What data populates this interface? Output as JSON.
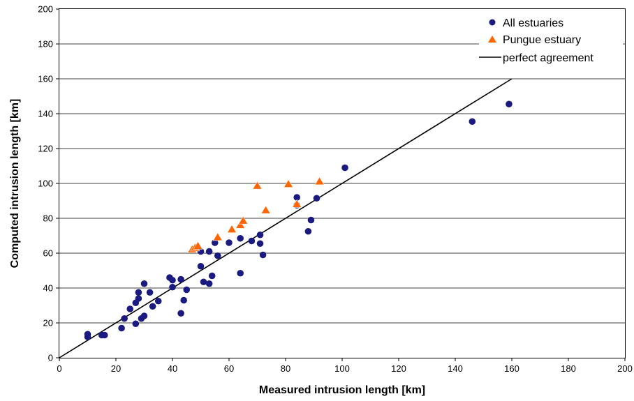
{
  "chart_data": {
    "type": "scatter",
    "title": "",
    "xlabel": "Measured intrusion length [km]",
    "ylabel": "Computed intrusion length [km]",
    "xlim": [
      0,
      200
    ],
    "ylim": [
      0,
      200
    ],
    "xticks": [
      0,
      20,
      40,
      60,
      80,
      100,
      120,
      140,
      160,
      180,
      200
    ],
    "yticks": [
      0,
      20,
      40,
      60,
      80,
      100,
      120,
      140,
      160,
      180,
      200
    ],
    "grid": "horizontal",
    "legend_position": "top-right",
    "series": [
      {
        "name": "All estuaries",
        "marker": "circle",
        "color": "#1a1a80",
        "points": [
          [
            10,
            13.5
          ],
          [
            10,
            12
          ],
          [
            15,
            13
          ],
          [
            16,
            13
          ],
          [
            22,
            17
          ],
          [
            23,
            22.5
          ],
          [
            25,
            28
          ],
          [
            27,
            31.5
          ],
          [
            27,
            19.5
          ],
          [
            28,
            37.5
          ],
          [
            28,
            34
          ],
          [
            29,
            22.5
          ],
          [
            30,
            24
          ],
          [
            30,
            42.5
          ],
          [
            32,
            37.5
          ],
          [
            33,
            29.5
          ],
          [
            35,
            32.5
          ],
          [
            39,
            46
          ],
          [
            40,
            44.5
          ],
          [
            40,
            40.5
          ],
          [
            43,
            45
          ],
          [
            43,
            25.5
          ],
          [
            44,
            33
          ],
          [
            45,
            39
          ],
          [
            49,
            63
          ],
          [
            50,
            61
          ],
          [
            50,
            52.5
          ],
          [
            51,
            43.5
          ],
          [
            53,
            61
          ],
          [
            53,
            42.5
          ],
          [
            54,
            47
          ],
          [
            55,
            66
          ],
          [
            56,
            58.5
          ],
          [
            60,
            66
          ],
          [
            64,
            68.5
          ],
          [
            64,
            48.5
          ],
          [
            68,
            67
          ],
          [
            71,
            70.5
          ],
          [
            71,
            65.5
          ],
          [
            72,
            59
          ],
          [
            84,
            92
          ],
          [
            84,
            87.5
          ],
          [
            88,
            72.5
          ],
          [
            89,
            79
          ],
          [
            91,
            91.5
          ],
          [
            101,
            109
          ],
          [
            146,
            135.5
          ],
          [
            159,
            145.5
          ]
        ]
      },
      {
        "name": "Pungue estuary",
        "marker": "triangle",
        "color": "#ff6600",
        "points": [
          [
            47,
            62
          ],
          [
            48,
            63
          ],
          [
            49,
            64
          ],
          [
            56,
            69
          ],
          [
            61,
            73.5
          ],
          [
            64,
            76
          ],
          [
            65,
            78.5
          ],
          [
            70,
            98.5
          ],
          [
            73,
            84.5
          ],
          [
            81,
            99.5
          ],
          [
            84,
            88
          ],
          [
            92,
            101
          ]
        ]
      }
    ],
    "lines": [
      {
        "name": "perfect agreement",
        "color": "#000000",
        "points": [
          [
            0,
            0
          ],
          [
            160,
            160
          ]
        ]
      }
    ]
  }
}
